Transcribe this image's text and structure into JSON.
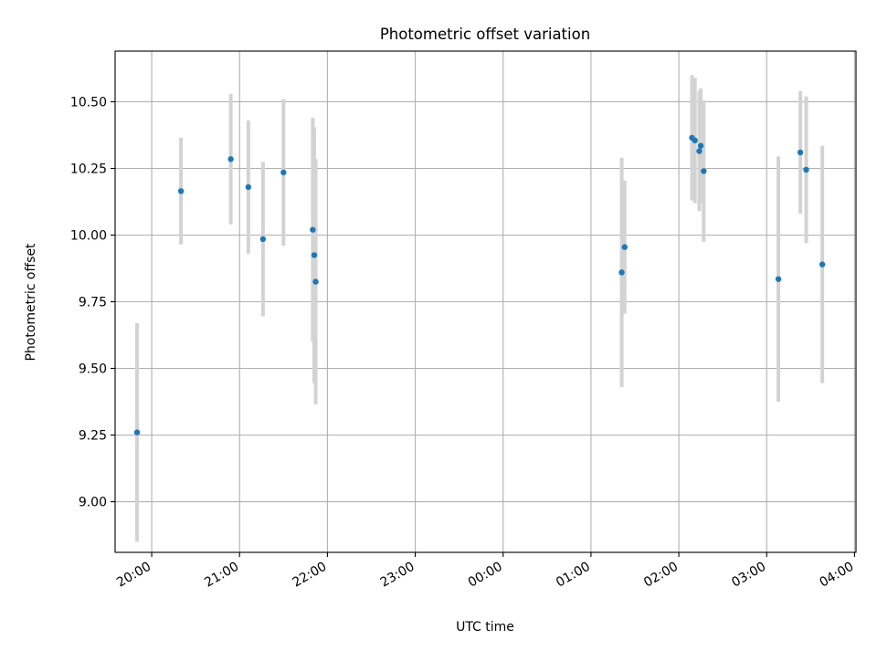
{
  "chart_data": {
    "type": "scatter",
    "title": "Photometric offset variation",
    "xlabel": "UTC time",
    "ylabel": "Photometric offset",
    "x_tick_labels": [
      "20:00",
      "21:00",
      "22:00",
      "23:00",
      "00:00",
      "01:00",
      "02:00",
      "03:00",
      "04:00"
    ],
    "y_tick_labels": [
      "9.00",
      "9.25",
      "9.50",
      "9.75",
      "10.00",
      "10.25",
      "10.50"
    ],
    "xlim": [
      "19:35",
      "04:01"
    ],
    "ylim": [
      8.81,
      10.69
    ],
    "grid": true,
    "colors": {
      "point": "#1f77b4",
      "errorbar": "#d3d3d3",
      "grid": "#b0b0b0",
      "axis": "#000000"
    },
    "series": [
      {
        "points": [
          {
            "x": "19:50",
            "y": 9.26,
            "err": 0.41
          },
          {
            "x": "20:20",
            "y": 10.165,
            "err": 0.2
          },
          {
            "x": "20:54",
            "y": 10.285,
            "err": 0.245
          },
          {
            "x": "21:06",
            "y": 10.18,
            "err": 0.25
          },
          {
            "x": "21:16",
            "y": 9.985,
            "err": 0.29
          },
          {
            "x": "21:30",
            "y": 10.235,
            "err": 0.275
          },
          {
            "x": "21:50",
            "y": 10.02,
            "err": 0.42
          },
          {
            "x": "21:51",
            "y": 9.925,
            "err": 0.48
          },
          {
            "x": "21:52",
            "y": 9.825,
            "err": 0.46
          },
          {
            "x": "01:21",
            "y": 9.86,
            "err": 0.43
          },
          {
            "x": "01:23",
            "y": 9.955,
            "err": 0.25
          },
          {
            "x": "02:09",
            "y": 10.365,
            "err": 0.235
          },
          {
            "x": "02:11",
            "y": 10.355,
            "err": 0.235
          },
          {
            "x": "02:14",
            "y": 10.315,
            "err": 0.225
          },
          {
            "x": "02:15",
            "y": 10.335,
            "err": 0.215
          },
          {
            "x": "02:17",
            "y": 10.24,
            "err": 0.265
          },
          {
            "x": "03:08",
            "y": 9.835,
            "err": 0.46
          },
          {
            "x": "03:23",
            "y": 10.31,
            "err": 0.23
          },
          {
            "x": "03:27",
            "y": 10.245,
            "err": 0.275
          },
          {
            "x": "03:38",
            "y": 9.89,
            "err": 0.445
          }
        ]
      }
    ]
  }
}
